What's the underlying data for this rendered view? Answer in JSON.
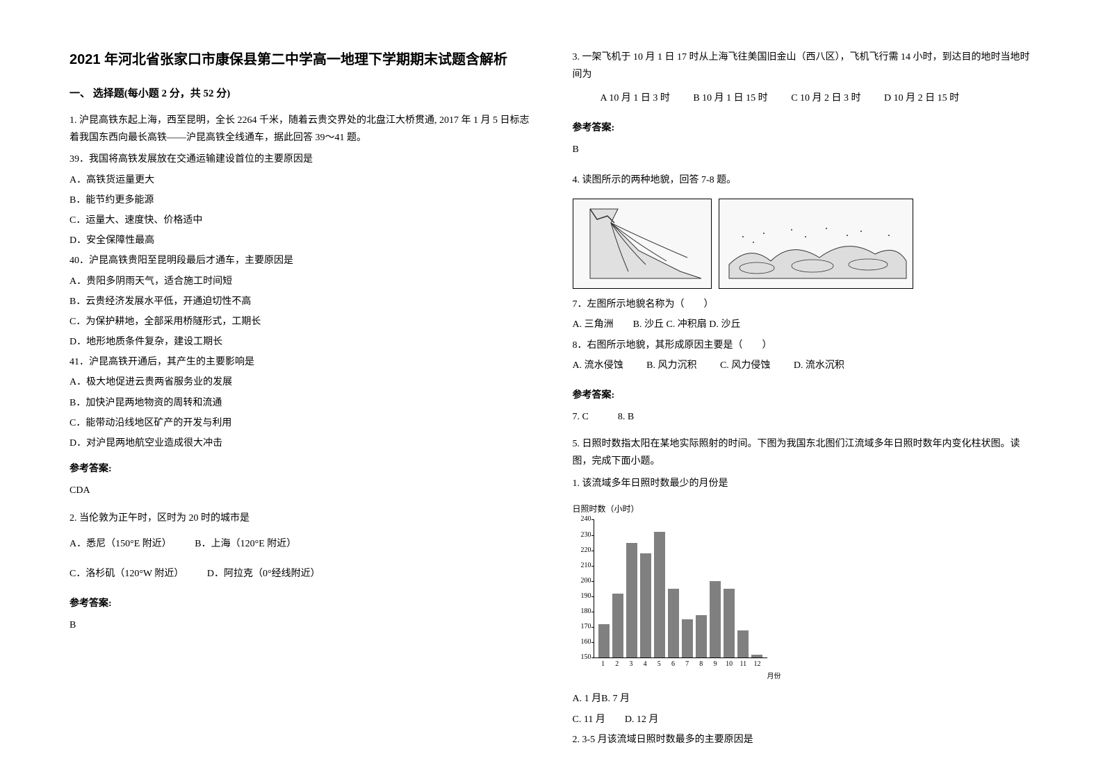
{
  "title": "2021 年河北省张家口市康保县第二中学高一地理下学期期末试题含解析",
  "section1_header": "一、 选择题(每小题 2 分，共 52 分)",
  "q1": {
    "intro": "1. 沪昆高铁东起上海，西至昆明，全长 2264 千米，随着云贵交界处的北盘江大桥贯通, 2017 年 1 月 5 日标志着我国东西向最长高铁——沪昆高铁全线通车，据此回答 39～41 题。",
    "q39": "39．我国将高铁发展放在交通运输建设首位的主要原因是",
    "q39_a": "A．高铁货运量更大",
    "q39_b": "B．能节约更多能源",
    "q39_c": "C．运量大、速度快、价格适中",
    "q39_d": "D．安全保障性最高",
    "q40": "40．沪昆高铁贵阳至昆明段最后才通车，主要原因是",
    "q40_a": "A．贵阳多阴雨天气，适合施工时间短",
    "q40_b": "B．云贵经济发展水平低，开通迫切性不高",
    "q40_c": "C．为保护耕地，全部采用桥隧形式，工期长",
    "q40_d": "D．地形地质条件复杂，建设工期长",
    "q41": "41．沪昆高铁开通后，其产生的主要影响是",
    "q41_a": "A．极大地促进云贵两省服务业的发展",
    "q41_b": "B．加快沪昆两地物资的周转和流通",
    "q41_c": "C．能带动沿线地区矿产的开发与利用",
    "q41_d": "D．对沪昆两地航空业造成很大冲击"
  },
  "answer_label": "参考答案:",
  "a1": "CDA",
  "q2": {
    "text": "2. 当伦敦为正午时，区时为 20 时的城市是",
    "a": "A．悉尼（150°E 附近）",
    "b": "B．上海（120°E 附近）",
    "c": "C．洛杉矶（120°W 附近）",
    "d": "D．阿拉克（0°经线附近）"
  },
  "a2": "B",
  "q3": {
    "text": "3. 一架飞机于 10 月 1 日 17 时从上海飞往美国旧金山（西八区），飞机飞行需 14 小时，到达目的地时当地时间为",
    "a": "A 10 月 1 日 3 时",
    "b": "B 10 月 1 日 15 时",
    "c": "C 10 月 2 日 3 时",
    "d": "D 10 月 2 日 15 时"
  },
  "a3": "B",
  "q4": {
    "text": "4. 读图所示的两种地貌，回答 7-8 题。",
    "q7": "7．左图所示地貌名称为（　　）",
    "q7_opts": "A. 三角洲　　B. 沙丘 C. 冲积扇 D. 沙丘",
    "q8": "8．右图所示地貌，其形成原因主要是（　　）",
    "q8_a": "A. 流水侵蚀",
    "q8_b": "B. 风力沉积",
    "q8_c": "C. 风力侵蚀",
    "q8_d": "D. 流水沉积"
  },
  "a4": "7. C　　　8. B",
  "q5": {
    "text": "5. 日照时数指太阳在某地实际照射的时间。下图为我国东北图们江流域多年日照时数年内变化柱状图。读图，完成下面小题。",
    "sub1": "1. 该流域多年日照时数最少的月份是",
    "opts1": "A. 1 月B. 7 月",
    "opts2": "C. 11 月　　D. 12 月",
    "sub2": "2. 3-5 月该流域日照时数最多的主要原因是"
  },
  "chart": {
    "title": "日照时数（小时）",
    "y_ticks": [
      240,
      230,
      220,
      210,
      200,
      190,
      180,
      170,
      160,
      150
    ],
    "x_ticks": [
      1,
      2,
      3,
      4,
      5,
      6,
      7,
      8,
      9,
      10,
      11,
      12
    ],
    "x_label": "月份",
    "values": [
      172,
      192,
      225,
      218,
      232,
      195,
      175,
      178,
      200,
      195,
      168,
      152
    ],
    "bar_color": "#808080",
    "y_min": 150,
    "y_max": 240,
    "background_color": "#ffffff"
  },
  "fig_left_alt": "冲积扇地貌示意图",
  "fig_right_alt": "沙丘地貌示意图"
}
